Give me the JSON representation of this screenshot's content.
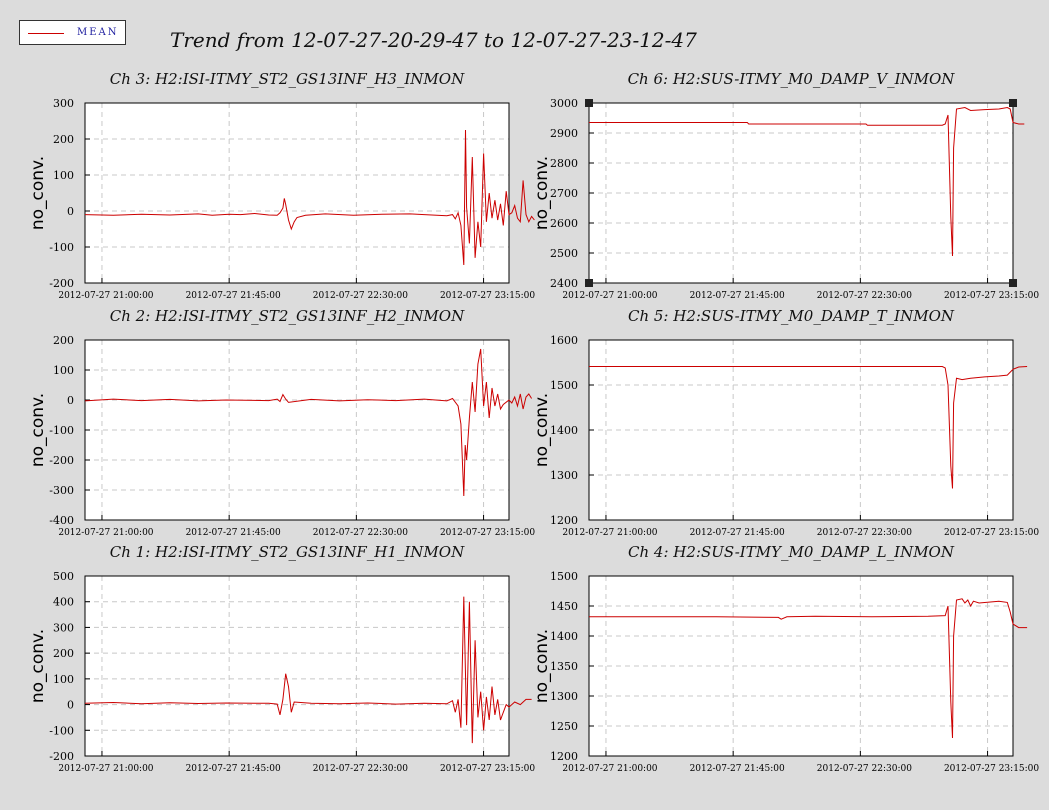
{
  "legend": {
    "label": "MEAN",
    "color": "#cc0000"
  },
  "title": "Trend from 12-07-27-20-29-47 to 12-07-27-23-12-47",
  "x_tick_labels": [
    "2012-07-27 21:00:00",
    "2012-07-27 21:45:00",
    "2012-07-27 22:30:00",
    "2012-07-27 23:15:00"
  ],
  "chart_data": [
    {
      "type": "line",
      "title": "Ch 3: H2:ISI-ITMY_ST2_GS13INF_H3_INMON",
      "ylabel": "no_conv.",
      "ylim": [
        -200,
        300
      ],
      "yticks": [
        -200,
        -100,
        0,
        100,
        200,
        300
      ],
      "xlim_minutes": [
        30,
        180
      ],
      "xtick_minutes": [
        36,
        81,
        126,
        171
      ],
      "series": [
        {
          "points": [
            [
              30,
              -10
            ],
            [
              40,
              -12
            ],
            [
              50,
              -9
            ],
            [
              60,
              -11
            ],
            [
              70,
              -8
            ],
            [
              75,
              -12
            ],
            [
              81,
              -9
            ],
            [
              85,
              -10
            ],
            [
              90,
              -7
            ],
            [
              95,
              -11
            ],
            [
              98,
              -12
            ],
            [
              99,
              -5
            ],
            [
              100,
              8
            ],
            [
              100.5,
              35
            ],
            [
              101,
              18
            ],
            [
              102,
              -25
            ],
            [
              103,
              -50
            ],
            [
              104,
              -30
            ],
            [
              105,
              -18
            ],
            [
              108,
              -12
            ],
            [
              115,
              -8
            ],
            [
              125,
              -12
            ],
            [
              135,
              -9
            ],
            [
              145,
              -8
            ],
            [
              150,
              -10
            ],
            [
              158,
              -13
            ],
            [
              160,
              -10
            ],
            [
              161,
              -22
            ],
            [
              162,
              -5
            ],
            [
              163,
              -40
            ],
            [
              164,
              -150
            ],
            [
              164.6,
              225
            ],
            [
              165,
              10
            ],
            [
              166,
              -90
            ],
            [
              167,
              150
            ],
            [
              168,
              -130
            ],
            [
              169,
              -30
            ],
            [
              170,
              -100
            ],
            [
              171,
              160
            ],
            [
              172,
              -30
            ],
            [
              173,
              50
            ],
            [
              174,
              -20
            ],
            [
              175,
              30
            ],
            [
              176,
              -25
            ],
            [
              177,
              20
            ],
            [
              178,
              -40
            ],
            [
              179,
              55
            ],
            [
              180,
              -10
            ],
            [
              181,
              -5
            ],
            [
              182,
              15
            ],
            [
              183,
              -20
            ],
            [
              184,
              -30
            ],
            [
              185,
              85
            ],
            [
              186,
              -10
            ],
            [
              187,
              -30
            ],
            [
              188,
              -15
            ],
            [
              189,
              -25
            ]
          ]
        }
      ]
    },
    {
      "type": "line",
      "title": "Ch 6: H2:SUS-ITMY_M0_DAMP_V_INMON",
      "ylabel": "no_conv.",
      "ylim": [
        2400,
        3000
      ],
      "yticks": [
        2400,
        2500,
        2600,
        2700,
        2800,
        2900,
        3000
      ],
      "xlim_minutes": [
        30,
        180
      ],
      "xtick_minutes": [
        36,
        81,
        126,
        171
      ],
      "series": [
        {
          "points": [
            [
              30,
              2935
            ],
            [
              86,
              2935
            ],
            [
              86.5,
              2930
            ],
            [
              128,
              2930
            ],
            [
              128.5,
              2926
            ],
            [
              155,
              2926
            ],
            [
              156,
              2930
            ],
            [
              157,
              2960
            ],
            [
              158,
              2620
            ],
            [
              158.6,
              2490
            ],
            [
              159,
              2850
            ],
            [
              160,
              2980
            ],
            [
              163,
              2985
            ],
            [
              165,
              2975
            ],
            [
              170,
              2978
            ],
            [
              175,
              2980
            ],
            [
              178,
              2985
            ],
            [
              179,
              2980
            ],
            [
              180,
              2935
            ],
            [
              182,
              2930
            ],
            [
              184,
              2930
            ]
          ]
        }
      ]
    },
    {
      "type": "line",
      "title": "Ch 2: H2:ISI-ITMY_ST2_GS13INF_H2_INMON",
      "ylabel": "no_conv.",
      "ylim": [
        -400,
        200
      ],
      "yticks": [
        -400,
        -300,
        -200,
        -100,
        0,
        100,
        200
      ],
      "xlim_minutes": [
        30,
        180
      ],
      "xtick_minutes": [
        36,
        81,
        126,
        171
      ],
      "series": [
        {
          "points": [
            [
              30,
              -3
            ],
            [
              40,
              3
            ],
            [
              50,
              -2
            ],
            [
              60,
              2
            ],
            [
              70,
              -3
            ],
            [
              80,
              0
            ],
            [
              95,
              -2
            ],
            [
              98,
              3
            ],
            [
              99,
              -5
            ],
            [
              100,
              18
            ],
            [
              101,
              3
            ],
            [
              102,
              -8
            ],
            [
              110,
              2
            ],
            [
              120,
              -3
            ],
            [
              130,
              1
            ],
            [
              140,
              -2
            ],
            [
              150,
              3
            ],
            [
              158,
              -3
            ],
            [
              160,
              5
            ],
            [
              162,
              -20
            ],
            [
              163,
              -80
            ],
            [
              164,
              -320
            ],
            [
              164.5,
              -150
            ],
            [
              165,
              -200
            ],
            [
              166,
              -60
            ],
            [
              167,
              60
            ],
            [
              168,
              -40
            ],
            [
              169,
              120
            ],
            [
              170,
              170
            ],
            [
              171,
              -20
            ],
            [
              172,
              60
            ],
            [
              173,
              -60
            ],
            [
              174,
              40
            ],
            [
              175,
              -20
            ],
            [
              176,
              20
            ],
            [
              177,
              -30
            ],
            [
              178,
              -15
            ],
            [
              180,
              0
            ],
            [
              181,
              -10
            ],
            [
              182,
              10
            ],
            [
              183,
              -20
            ],
            [
              184,
              20
            ],
            [
              185,
              -30
            ],
            [
              186,
              10
            ],
            [
              187,
              20
            ],
            [
              188,
              5
            ]
          ]
        }
      ]
    },
    {
      "type": "line",
      "title": "Ch 5: H2:SUS-ITMY_M0_DAMP_T_INMON",
      "ylabel": "no_conv.",
      "ylim": [
        1200,
        1600
      ],
      "yticks": [
        1200,
        1300,
        1400,
        1500,
        1600
      ],
      "xlim_minutes": [
        30,
        180
      ],
      "xtick_minutes": [
        36,
        81,
        126,
        171
      ],
      "series": [
        {
          "points": [
            [
              30,
              1541
            ],
            [
              155,
              1541
            ],
            [
              156,
              1538
            ],
            [
              157,
              1500
            ],
            [
              158,
              1320
            ],
            [
              158.6,
              1270
            ],
            [
              159,
              1460
            ],
            [
              160,
              1515
            ],
            [
              162,
              1512
            ],
            [
              165,
              1515
            ],
            [
              170,
              1518
            ],
            [
              175,
              1520
            ],
            [
              178,
              1522
            ],
            [
              180,
              1535
            ],
            [
              182,
              1540
            ],
            [
              185,
              1541
            ]
          ]
        }
      ]
    },
    {
      "type": "line",
      "title": "Ch 1: H2:ISI-ITMY_ST2_GS13INF_H1_INMON",
      "ylabel": "no_conv.",
      "ylim": [
        -200,
        500
      ],
      "yticks": [
        -200,
        -100,
        0,
        100,
        200,
        300,
        400,
        500
      ],
      "xlim_minutes": [
        30,
        180
      ],
      "xtick_minutes": [
        36,
        81,
        126,
        171
      ],
      "series": [
        {
          "points": [
            [
              30,
              5
            ],
            [
              40,
              8
            ],
            [
              50,
              3
            ],
            [
              60,
              7
            ],
            [
              70,
              4
            ],
            [
              80,
              6
            ],
            [
              95,
              5
            ],
            [
              98,
              2
            ],
            [
              99,
              -40
            ],
            [
              100,
              20
            ],
            [
              101,
              120
            ],
            [
              102,
              70
            ],
            [
              103,
              -30
            ],
            [
              104,
              10
            ],
            [
              110,
              5
            ],
            [
              120,
              3
            ],
            [
              130,
              6
            ],
            [
              140,
              2
            ],
            [
              150,
              5
            ],
            [
              158,
              3
            ],
            [
              160,
              15
            ],
            [
              161,
              -30
            ],
            [
              162,
              20
            ],
            [
              163,
              -90
            ],
            [
              164,
              420
            ],
            [
              165,
              -80
            ],
            [
              166,
              400
            ],
            [
              167,
              -150
            ],
            [
              168,
              250
            ],
            [
              169,
              -50
            ],
            [
              170,
              50
            ],
            [
              171,
              -100
            ],
            [
              172,
              30
            ],
            [
              173,
              -60
            ],
            [
              174,
              70
            ],
            [
              175,
              -40
            ],
            [
              176,
              20
            ],
            [
              177,
              -60
            ],
            [
              178,
              -30
            ],
            [
              179,
              0
            ],
            [
              180,
              -10
            ],
            [
              182,
              10
            ],
            [
              184,
              0
            ],
            [
              186,
              20
            ],
            [
              188,
              20
            ]
          ]
        }
      ]
    },
    {
      "type": "line",
      "title": "Ch 4: H2:SUS-ITMY_M0_DAMP_L_INMON",
      "ylabel": "no_conv.",
      "ylim": [
        1200,
        1500
      ],
      "yticks": [
        1200,
        1250,
        1300,
        1350,
        1400,
        1450,
        1500
      ],
      "xlim_minutes": [
        30,
        180
      ],
      "xtick_minutes": [
        36,
        81,
        126,
        171
      ],
      "series": [
        {
          "points": [
            [
              30,
              1432
            ],
            [
              75,
              1432
            ],
            [
              97,
              1431
            ],
            [
              98,
              1428
            ],
            [
              100,
              1432
            ],
            [
              110,
              1433
            ],
            [
              130,
              1432
            ],
            [
              150,
              1433
            ],
            [
              156,
              1434
            ],
            [
              157,
              1450
            ],
            [
              158,
              1290
            ],
            [
              158.6,
              1230
            ],
            [
              159,
              1400
            ],
            [
              160,
              1460
            ],
            [
              162,
              1462
            ],
            [
              163,
              1455
            ],
            [
              164,
              1460
            ],
            [
              165,
              1450
            ],
            [
              166,
              1458
            ],
            [
              168,
              1455
            ],
            [
              175,
              1458
            ],
            [
              178,
              1456
            ],
            [
              179,
              1440
            ],
            [
              180,
              1420
            ],
            [
              182,
              1414
            ],
            [
              185,
              1414
            ]
          ]
        }
      ]
    }
  ]
}
